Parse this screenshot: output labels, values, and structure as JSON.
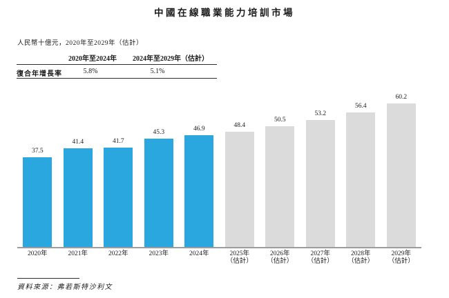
{
  "title": "中國在線職業能力培訓市場",
  "subtitle": "人民幣十億元，2020年至2029年（估計）",
  "cagr_table": {
    "row_label": "復合年增長率",
    "columns": [
      "2020年至2024年",
      "2024年至2029年（估計）"
    ],
    "values": [
      "5.8%",
      "5.1%"
    ]
  },
  "source": "資料來源：弗若斯特沙利文",
  "colors": {
    "actual_bar": "#2AA7DE",
    "estimate_bar": "#DBDBDB",
    "axis_line": "#9C9C9C",
    "text": "#1A1A1A"
  },
  "chart_data": {
    "type": "bar",
    "title": "中國在線職業能力培訓市場",
    "unit_label": "人民幣十億元",
    "categories": [
      "2020年",
      "2021年",
      "2022年",
      "2023年",
      "2024年",
      "2025年\n（估計）",
      "2026年\n（估計）",
      "2027年\n（估計）",
      "2028年\n（估計）",
      "2029年\n（估計）"
    ],
    "values": [
      37.5,
      41.4,
      41.7,
      45.3,
      46.9,
      48.4,
      50.5,
      53.2,
      56.4,
      60.2
    ],
    "segments": [
      "actual",
      "actual",
      "actual",
      "actual",
      "actual",
      "estimate",
      "estimate",
      "estimate",
      "estimate",
      "estimate"
    ],
    "value_labels": [
      "37.5",
      "41.4",
      "41.7",
      "45.3",
      "46.9",
      "48.4",
      "50.5",
      "53.2",
      "56.4",
      "60.2"
    ],
    "cagr_annotations": [
      {
        "period": "2020年至2024年",
        "value": "5.8%"
      },
      {
        "period": "2024年至2029年（估計）",
        "value": "5.1%"
      }
    ],
    "ylim": [
      0,
      62
    ],
    "grid": false,
    "legend": "none",
    "source": "資料來源：弗若斯特沙利文"
  }
}
